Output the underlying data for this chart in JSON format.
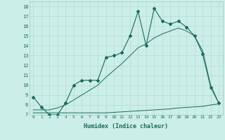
{
  "xlabel": "Humidex (Indice chaleur)",
  "bg_color": "#cceee8",
  "grid_color": "#b8ddd6",
  "line_color": "#1a6b5a",
  "xlim": [
    -0.5,
    23.5
  ],
  "ylim": [
    7,
    18.5
  ],
  "xtick_labels": [
    "0",
    "1",
    "2",
    "3",
    "4",
    "5",
    "6",
    "7",
    "8",
    "9",
    "10",
    "11",
    "12",
    "13",
    "14",
    "15",
    "16",
    "17",
    "18",
    "19",
    "20",
    "21",
    "22",
    "23"
  ],
  "ytick_labels": [
    "7",
    "8",
    "9",
    "10",
    "11",
    "12",
    "13",
    "14",
    "15",
    "16",
    "17",
    "18"
  ],
  "main_line_x": [
    0,
    1,
    2,
    3,
    4,
    5,
    6,
    7,
    8,
    9,
    10,
    11,
    12,
    13,
    14,
    15,
    16,
    17,
    18,
    19,
    20,
    21,
    22,
    23
  ],
  "main_line_y": [
    8.8,
    7.8,
    7.0,
    7.0,
    8.2,
    10.0,
    10.5,
    10.5,
    10.5,
    12.8,
    13.0,
    13.3,
    15.0,
    17.5,
    14.0,
    17.8,
    16.5,
    16.2,
    16.5,
    15.9,
    15.0,
    13.2,
    9.8,
    8.2
  ],
  "line2_x": [
    0,
    1,
    2,
    3,
    4,
    5,
    6,
    7,
    8,
    9,
    10,
    11,
    12,
    13,
    14,
    15,
    16,
    17,
    18,
    19,
    20,
    21,
    22,
    23
  ],
  "line2_y": [
    7.2,
    7.2,
    7.2,
    7.2,
    7.2,
    7.2,
    7.2,
    7.2,
    7.2,
    7.2,
    7.25,
    7.3,
    7.35,
    7.4,
    7.45,
    7.5,
    7.55,
    7.6,
    7.7,
    7.75,
    7.8,
    7.85,
    8.0,
    8.1
  ],
  "line3_x": [
    0,
    1,
    2,
    3,
    4,
    5,
    6,
    7,
    8,
    9,
    10,
    11,
    12,
    13,
    14,
    15,
    16,
    17,
    18,
    19,
    20,
    21,
    22,
    23
  ],
  "line3_y": [
    7.5,
    7.5,
    7.5,
    7.7,
    8.0,
    8.5,
    9.0,
    9.5,
    10.0,
    10.8,
    11.5,
    12.2,
    13.0,
    13.8,
    14.2,
    14.8,
    15.2,
    15.5,
    15.8,
    15.5,
    15.0,
    13.5,
    10.0,
    8.2
  ]
}
